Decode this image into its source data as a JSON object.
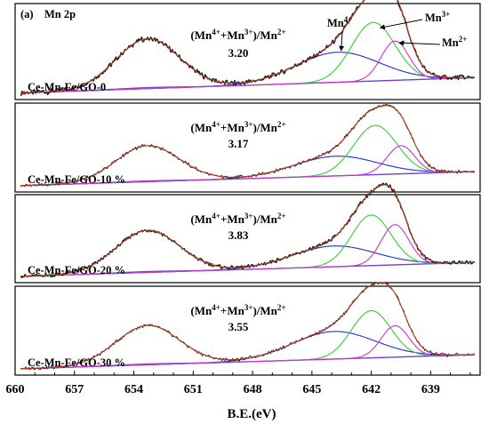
{
  "chart_data": {
    "type": "line",
    "panel_tag": "(a)",
    "title": "Mn 2p",
    "xlabel": "B.E.(eV)",
    "xlim": [
      660,
      636.5
    ],
    "x_reversed": true,
    "xticks": [
      660,
      657,
      654,
      651,
      648,
      645,
      642,
      639
    ],
    "xtick_labels": [
      "660",
      "657",
      "654",
      "651",
      "648",
      "645",
      "642",
      "639"
    ],
    "ratio_label": {
      "prefix": "(Mn",
      "sup1": "4+",
      "mid": "+Mn",
      "sup2": "3+",
      "close": ")/Mn",
      "sup3": "2+"
    },
    "peak_labels": {
      "mn4": "Mn",
      "mn4_sup": "4+",
      "mn3": "Mn",
      "mn3_sup": "3+",
      "mn2": "Mn",
      "mn2_sup": "2+"
    },
    "colors": {
      "raw": "#1a1a1a",
      "envelope": "#b03a1e",
      "mn4": "#1f2fd6",
      "mn3": "#33cc33",
      "mn2": "#cc33cc",
      "background_line": "#7a3fd0"
    },
    "panels": [
      {
        "label": "Ce-Mn-Fe/GO-0",
        "ratio": "3.20",
        "mn4": [
          643.7,
          2.1,
          0.42
        ],
        "mn3": [
          641.9,
          1.1,
          0.82
        ],
        "mn2": [
          640.8,
          0.7,
          0.55
        ],
        "sat": [
          653.3,
          1.6,
          0.7
        ]
      },
      {
        "label": "Ce-Mn-Fe/GO-10 %",
        "ratio": "3.17",
        "mn4": [
          643.8,
          2.1,
          0.3
        ],
        "mn3": [
          641.8,
          1.1,
          0.75
        ],
        "mn2": [
          640.5,
          0.7,
          0.43
        ],
        "sat": [
          653.3,
          1.6,
          0.55
        ]
      },
      {
        "label": "Ce-Mn-Fe/GO-20 %",
        "ratio": "3.83",
        "mn4": [
          643.9,
          2.1,
          0.32
        ],
        "mn3": [
          642.0,
          1.0,
          0.78
        ],
        "mn2": [
          640.8,
          0.7,
          0.62
        ],
        "sat": [
          653.3,
          1.6,
          0.65
        ]
      },
      {
        "label": "Ce-Mn-Fe/GO-30 %",
        "ratio": "3.55",
        "mn4": [
          643.9,
          2.1,
          0.42
        ],
        "mn3": [
          642.0,
          1.0,
          0.72
        ],
        "mn2": [
          640.8,
          0.7,
          0.48
        ],
        "sat": [
          653.3,
          1.6,
          0.6
        ]
      }
    ]
  }
}
